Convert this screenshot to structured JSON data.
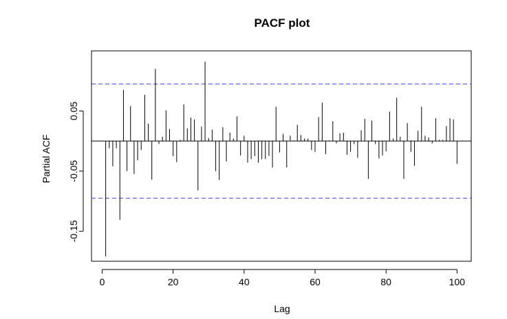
{
  "chart_data": {
    "type": "bar",
    "title": "PACF plot",
    "xlabel": "Lag",
    "ylabel": "Partial ACF",
    "xlim": [
      -3,
      104
    ],
    "ylim": [
      -0.2,
      0.15
    ],
    "xticks": [
      0,
      20,
      40,
      60,
      80,
      100
    ],
    "xtick_labels": [
      "0",
      "20",
      "40",
      "60",
      "80",
      "100"
    ],
    "yticks": [
      -0.15,
      -0.05,
      0.05
    ],
    "ytick_labels": [
      "-0.15",
      "-0.05",
      "0.05"
    ],
    "confidence_bound": 0.095,
    "bound_color": "#3333ff",
    "lags": [
      1,
      2,
      3,
      4,
      5,
      6,
      7,
      8,
      9,
      10,
      11,
      12,
      13,
      14,
      15,
      16,
      17,
      18,
      19,
      20,
      21,
      22,
      23,
      24,
      25,
      26,
      27,
      28,
      29,
      30,
      31,
      32,
      33,
      34,
      35,
      36,
      37,
      38,
      39,
      40,
      41,
      42,
      43,
      44,
      45,
      46,
      47,
      48,
      49,
      50,
      51,
      52,
      53,
      54,
      55,
      56,
      57,
      58,
      59,
      60,
      61,
      62,
      63,
      64,
      65,
      66,
      67,
      68,
      69,
      70,
      71,
      72,
      73,
      74,
      75,
      76,
      77,
      78,
      79,
      80,
      81,
      82,
      83,
      84,
      85,
      86,
      87,
      88,
      89,
      90,
      91,
      92,
      93,
      94,
      95,
      96,
      97,
      98,
      99,
      100
    ],
    "values": [
      -0.192,
      -0.012,
      -0.042,
      -0.012,
      -0.131,
      0.085,
      -0.05,
      0.058,
      -0.055,
      -0.032,
      -0.015,
      0.077,
      0.029,
      -0.064,
      0.12,
      -0.005,
      0.007,
      0.051,
      0.02,
      -0.025,
      -0.035,
      0.002,
      0.061,
      0.021,
      0.039,
      0.036,
      -0.082,
      0.024,
      0.132,
      0.005,
      0.019,
      -0.05,
      -0.065,
      0.023,
      -0.034,
      0.014,
      0.004,
      0.041,
      -0.024,
      0.009,
      -0.036,
      -0.03,
      -0.025,
      -0.036,
      -0.03,
      -0.03,
      -0.025,
      -0.044,
      0.057,
      -0.019,
      0.012,
      -0.044,
      0.009,
      0.001,
      0.027,
      0.01,
      0.004,
      0.004,
      -0.015,
      -0.018,
      0.04,
      0.064,
      -0.022,
      0.001,
      0.033,
      -0.004,
      0.013,
      0.014,
      -0.023,
      -0.018,
      -0.005,
      -0.028,
      0.018,
      0.037,
      -0.063,
      0.034,
      -0.005,
      -0.029,
      -0.024,
      -0.017,
      0.049,
      0.004,
      0.072,
      0.007,
      -0.063,
      0.03,
      -0.018,
      -0.041,
      0.017,
      0.057,
      0.009,
      0.006,
      -0.004,
      0.038,
      0.002,
      0.002,
      0.025,
      0.038,
      0.036,
      -0.038
    ]
  }
}
